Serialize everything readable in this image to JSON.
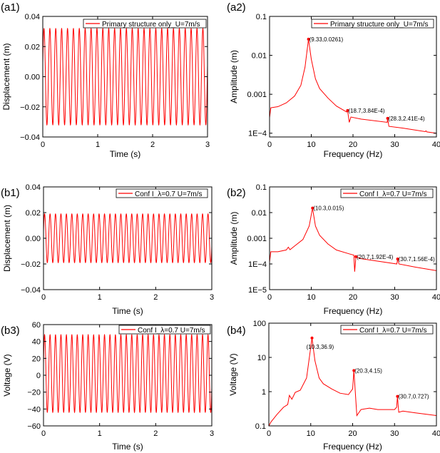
{
  "chart_data": [
    {
      "id": "a1",
      "type": "line",
      "panel_label": "(a1)",
      "xlabel": "Time (s)",
      "ylabel": "Displacement (m)",
      "xlim": [
        0,
        3
      ],
      "ylim": [
        -0.04,
        0.04
      ],
      "xticks": [
        0,
        1,
        2,
        3
      ],
      "xtick_labels": [
        "0",
        "1",
        "2",
        "3"
      ],
      "yticks": [
        -0.04,
        -0.02,
        0,
        0.02,
        0.04
      ],
      "ytick_labels": [
        "−0.04",
        "−0.02",
        "0.00",
        "0.02",
        "0.04"
      ],
      "yscale": "linear",
      "legend_position": "top-right",
      "series": [
        {
          "name": "Primary structure only_U=7m/s",
          "color": "#ff0000",
          "signal": {
            "frequency_hz": 9.33,
            "max": 0.032,
            "min": -0.032
          }
        }
      ]
    },
    {
      "id": "a2",
      "type": "line",
      "panel_label": "(a2)",
      "xlabel": "Frequency (Hz)",
      "ylabel": "Amplitude (m)",
      "xlim": [
        0,
        40
      ],
      "ylim": [
        8e-05,
        0.1
      ],
      "xticks": [
        0,
        10,
        20,
        30,
        40
      ],
      "xtick_labels": [
        "0",
        "10",
        "20",
        "30",
        "40"
      ],
      "yticks": [
        0.0001,
        0.001,
        0.01,
        0.1
      ],
      "ytick_labels": [
        "1E−4",
        "0.001",
        "0.01",
        "0.1"
      ],
      "yscale": "log",
      "legend_position": "top-right",
      "series": [
        {
          "name": "Primary structure only_U=7m/s",
          "color": "#ff0000",
          "x": [
            0,
            0.3,
            2,
            4,
            6,
            7.5,
            8.5,
            9.33,
            10,
            11,
            12,
            14,
            16,
            18.5,
            18.7,
            19.1,
            19.5,
            22,
            28.2,
            28.3,
            28.6,
            32,
            37.3,
            37.5,
            37.7,
            40
          ],
          "y": [
            0.00025,
            0.00045,
            0.00048,
            0.0006,
            0.0009,
            0.0017,
            0.005,
            0.0261,
            0.008,
            0.0025,
            0.0014,
            0.0008,
            0.0005,
            0.00035,
            0.000384,
            0.00019,
            0.00026,
            0.00023,
            0.00019,
            0.000241,
            0.00015,
            0.000135,
            0.00011,
            0.000115,
            0.000108,
            0.0001
          ]
        }
      ],
      "annotations": [
        {
          "x": 9.33,
          "y": 0.0261,
          "text": "(9.33,0.0261)"
        },
        {
          "x": 18.7,
          "y": 0.000384,
          "text": "(18.7,3.84E-4)"
        },
        {
          "x": 28.3,
          "y": 0.000241,
          "text": "(28.3,2.41E-4)"
        }
      ]
    },
    {
      "id": "b1",
      "type": "line",
      "panel_label": "(b1)",
      "xlabel": "Time (s)",
      "ylabel": "Displacement (m)",
      "xlim": [
        0,
        3
      ],
      "ylim": [
        -0.04,
        0.04
      ],
      "xticks": [
        0,
        1,
        2,
        3
      ],
      "xtick_labels": [
        "0",
        "1",
        "2",
        "3"
      ],
      "yticks": [
        -0.04,
        -0.02,
        0,
        0.02,
        0.04
      ],
      "ytick_labels": [
        "−0.04",
        "−0.02",
        "0.00",
        "0.02",
        "0.04"
      ],
      "yscale": "linear",
      "legend_position": "top-right",
      "series": [
        {
          "name": "Conf I_λ=0.7 U=7m/s",
          "color": "#ff0000",
          "signal": {
            "frequency_hz": 10.3,
            "max": 0.019,
            "min": -0.019
          }
        }
      ]
    },
    {
      "id": "b2",
      "type": "line",
      "panel_label": "(b2)",
      "xlabel": "Frequency (Hz)",
      "ylabel": "Amplitude (m)",
      "xlim": [
        0,
        40
      ],
      "ylim": [
        1e-05,
        0.1
      ],
      "xticks": [
        0,
        10,
        20,
        30,
        40
      ],
      "xtick_labels": [
        "0",
        "10",
        "20",
        "30",
        "40"
      ],
      "yticks": [
        1e-05,
        0.0001,
        0.001,
        0.01,
        0.1
      ],
      "ytick_labels": [
        "1E−5",
        "1E−4",
        "0.001",
        "0.01",
        "0.1"
      ],
      "yscale": "log",
      "legend_position": "top-right",
      "series": [
        {
          "name": "Conf I_λ=0.7 U=7m/s",
          "color": "#ff0000",
          "x": [
            0,
            0.3,
            2,
            4,
            4.5,
            4.9,
            6,
            8,
            9.5,
            10.3,
            11,
            12,
            14,
            16,
            19,
            20.2,
            20.4,
            20.7,
            22,
            30.5,
            30.7,
            31,
            35,
            40
          ],
          "y": [
            0.00012,
            0.0003,
            0.0003,
            0.00035,
            0.00045,
            0.00036,
            0.0005,
            0.0009,
            0.003,
            0.015,
            0.003,
            0.0013,
            0.0006,
            0.00035,
            0.00025,
            0.00022,
            5e-05,
            0.000192,
            0.00016,
            0.0001,
            0.000156,
            0.0001,
            7.5e-05,
            5.5e-05
          ]
        }
      ],
      "annotations": [
        {
          "x": 10.3,
          "y": 0.015,
          "text": "(10.3,0.015)"
        },
        {
          "x": 20.7,
          "y": 0.000192,
          "text": "(20.7,1.92E-4)"
        },
        {
          "x": 30.7,
          "y": 0.000156,
          "text": "(30.7,1.56E-4)"
        }
      ]
    },
    {
      "id": "b3",
      "type": "line",
      "panel_label": "(b3)",
      "xlabel": "Time (s)",
      "ylabel": "Voltage (V)",
      "xlim": [
        0,
        3
      ],
      "ylim": [
        -60,
        60
      ],
      "xticks": [
        0,
        1,
        2,
        3
      ],
      "xtick_labels": [
        "0",
        "1",
        "2",
        "3"
      ],
      "yticks": [
        -60,
        -40,
        -20,
        0,
        20,
        40,
        60
      ],
      "ytick_labels": [
        "−60",
        "−40",
        "−20",
        "0",
        "20",
        "40",
        "60"
      ],
      "yscale": "linear",
      "legend_position": "top-right",
      "series": [
        {
          "name": "Conf I_λ=0.7 U=7m/s",
          "color": "#ff0000",
          "signal": {
            "frequency_hz": 10.3,
            "max": 48,
            "min": -44
          }
        }
      ]
    },
    {
      "id": "b4",
      "type": "line",
      "panel_label": "(b4)",
      "xlabel": "Frequency (Hz)",
      "ylabel": "Voltage (V)",
      "xlim": [
        0,
        40
      ],
      "ylim": [
        0.1,
        100
      ],
      "xticks": [
        0,
        10,
        20,
        30,
        40
      ],
      "xtick_labels": [
        "0",
        "10",
        "20",
        "30",
        "40"
      ],
      "yticks": [
        0.1,
        1,
        10,
        100
      ],
      "ytick_labels": [
        "0.1",
        "1",
        "10",
        "100"
      ],
      "yscale": "log",
      "legend_position": "top-right",
      "series": [
        {
          "name": "Conf I_λ=0.7 U=7m/s",
          "color": "#ff0000",
          "x": [
            0,
            0.5,
            2,
            3.5,
            4.5,
            4.9,
            5.5,
            6.3,
            7.5,
            9,
            10.3,
            11,
            12,
            13,
            15,
            17,
            19,
            20,
            20.3,
            21,
            22,
            24,
            26,
            30,
            30.5,
            30.7,
            31,
            32,
            35,
            40
          ],
          "y": [
            0.1,
            0.13,
            0.22,
            0.35,
            0.42,
            0.78,
            0.6,
            0.95,
            1.1,
            2.5,
            36.9,
            8,
            2.5,
            1.7,
            1.2,
            0.9,
            0.82,
            1.2,
            4.15,
            0.2,
            0.3,
            0.33,
            0.3,
            0.3,
            0.35,
            0.727,
            0.25,
            0.27,
            0.24,
            0.2
          ]
        }
      ],
      "annotations": [
        {
          "x": 10.3,
          "y": 36.9,
          "text": "(10.3,36.9)"
        },
        {
          "x": 20.3,
          "y": 4.15,
          "text": "(20.3,4.15)"
        },
        {
          "x": 30.7,
          "y": 0.727,
          "text": "(30.7,0.727)"
        }
      ]
    }
  ]
}
